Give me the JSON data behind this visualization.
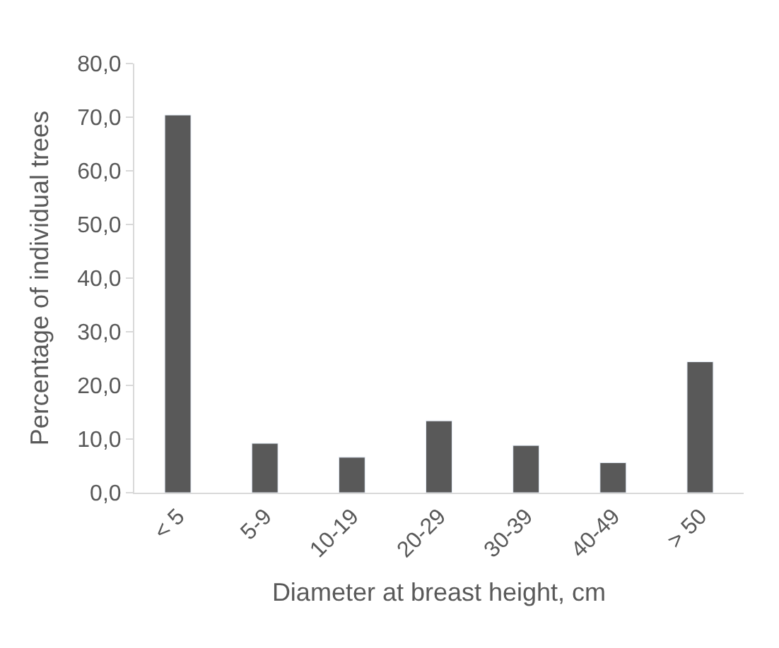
{
  "chart_data": {
    "type": "bar",
    "xlabel": "Diameter at breast height, cm",
    "ylabel": "Percentage of individual trees",
    "categories": [
      "< 5",
      "5-9",
      "10-19",
      "20-29",
      "30-39",
      "40-49",
      "> 50"
    ],
    "values": [
      70.4,
      9.2,
      6.6,
      13.4,
      8.8,
      5.6,
      24.4
    ],
    "color": "#595959",
    "ylim": [
      0,
      80
    ],
    "yticks": [
      {
        "value": 0,
        "label": "0,0"
      },
      {
        "value": 10,
        "label": "10,0"
      },
      {
        "value": 20,
        "label": "20,0"
      },
      {
        "value": 30,
        "label": "30,0"
      },
      {
        "value": 40,
        "label": "40,0"
      },
      {
        "value": 50,
        "label": "50,0"
      },
      {
        "value": 60,
        "label": "60,0"
      },
      {
        "value": 70,
        "label": "70,0"
      },
      {
        "value": 80,
        "label": "80,0"
      }
    ]
  }
}
